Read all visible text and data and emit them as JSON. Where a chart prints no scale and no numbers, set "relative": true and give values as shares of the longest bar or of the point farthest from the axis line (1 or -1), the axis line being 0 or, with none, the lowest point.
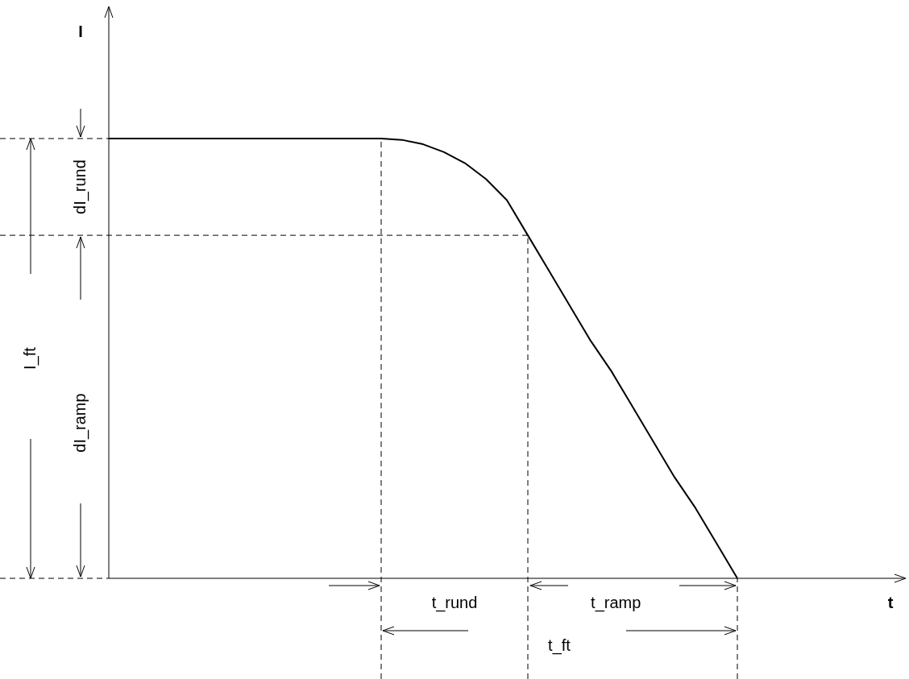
{
  "chart_data": {
    "type": "line",
    "relative": true,
    "xlabel": "t",
    "categories": [
      null,
      null,
      null,
      null,
      null,
      null,
      null,
      null,
      null,
      null,
      null,
      null,
      null,
      null,
      null,
      null,
      null,
      null,
      null,
      null,
      null,
      null,
      null,
      null,
      null,
      null,
      null,
      null,
      null,
      null,
      null,
      null,
      null,
      null,
      null,
      null,
      null,
      null
    ],
    "series": [
      {
        "color": "#000000",
        "values": [
          1,
          1,
          1,
          1,
          1,
          1,
          1,
          1,
          1,
          1,
          1,
          1,
          1,
          1,
          0.997,
          0.987,
          0.969,
          0.944,
          0.908,
          0.86,
          0.78,
          0.7,
          0.62,
          0.54,
          0.47,
          0.39,
          0.31,
          0.23,
          0.16,
          0.08,
          0,
          null,
          null,
          null,
          null,
          null,
          null,
          null
        ]
      }
    ],
    "ref_lines": [
      {
        "axis": "y",
        "value": 1,
        "line_style": "dashed"
      },
      {
        "axis": "y",
        "value": 0.78,
        "line_style": "dashed"
      }
    ],
    "annotations": [
      "I",
      "dI_rund",
      "dI_ramp",
      "I_ft",
      "t_rund",
      "t_ramp",
      "t_ft"
    ],
    "legend": false,
    "marker": "none",
    "line_style": "solid"
  }
}
